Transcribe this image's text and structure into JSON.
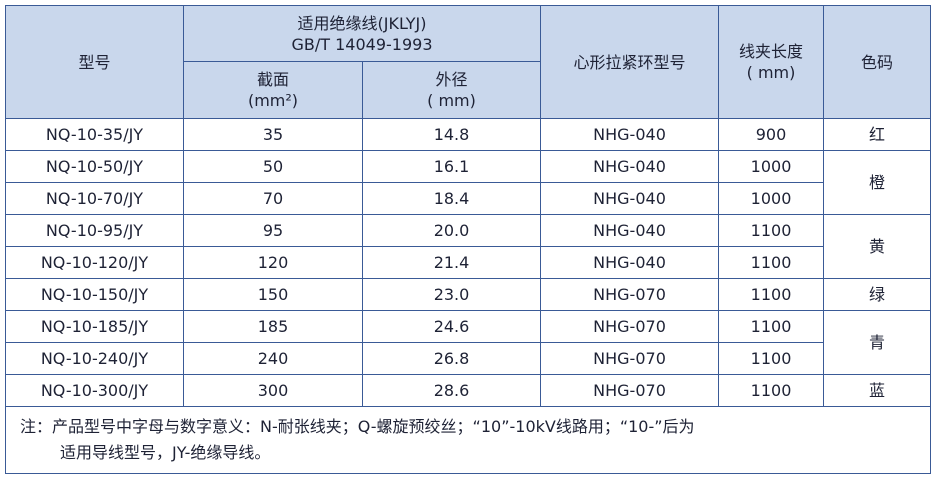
{
  "header": {
    "model": "型号",
    "wire_group": [
      "适用绝缘线(JKLYJ)",
      "GB/T 14049-1993"
    ],
    "section": [
      "截面",
      "(mm²)"
    ],
    "diameter": [
      "外径",
      "( mm)"
    ],
    "thimble": "心形拉紧环型号",
    "length": [
      "线夹长度",
      "( mm)"
    ],
    "color": "色码"
  },
  "table": {
    "rows": [
      [
        "NQ-10-35/JY",
        "35",
        "14.8",
        "NHG-040",
        "900"
      ],
      [
        "NQ-10-50/JY",
        "50",
        "16.1",
        "NHG-040",
        "1000"
      ],
      [
        "NQ-10-70/JY",
        "70",
        "18.4",
        "NHG-040",
        "1000"
      ],
      [
        "NQ-10-95/JY",
        "95",
        "20.0",
        "NHG-040",
        "1100"
      ],
      [
        "NQ-10-120/JY",
        "120",
        "21.4",
        "NHG-040",
        "1100"
      ],
      [
        "NQ-10-150/JY",
        "150",
        "23.0",
        "NHG-070",
        "1100"
      ],
      [
        "NQ-10-185/JY",
        "185",
        "24.6",
        "NHG-070",
        "1100"
      ],
      [
        "NQ-10-240/JY",
        "240",
        "26.8",
        "NHG-070",
        "1100"
      ],
      [
        "NQ-10-300/JY",
        "300",
        "28.6",
        "NHG-070",
        "1100"
      ]
    ],
    "colors": [
      "红",
      "橙",
      null,
      "黄",
      null,
      "绿",
      "青",
      null,
      "蓝"
    ]
  },
  "note": [
    "注：产品型号中字母与数字意义：N-耐张线夹；Q-螺旋预绞丝；“10”-10kV线路用；“10-”后为",
    "适用导线型号，JY-绝缘导线。"
  ]
}
